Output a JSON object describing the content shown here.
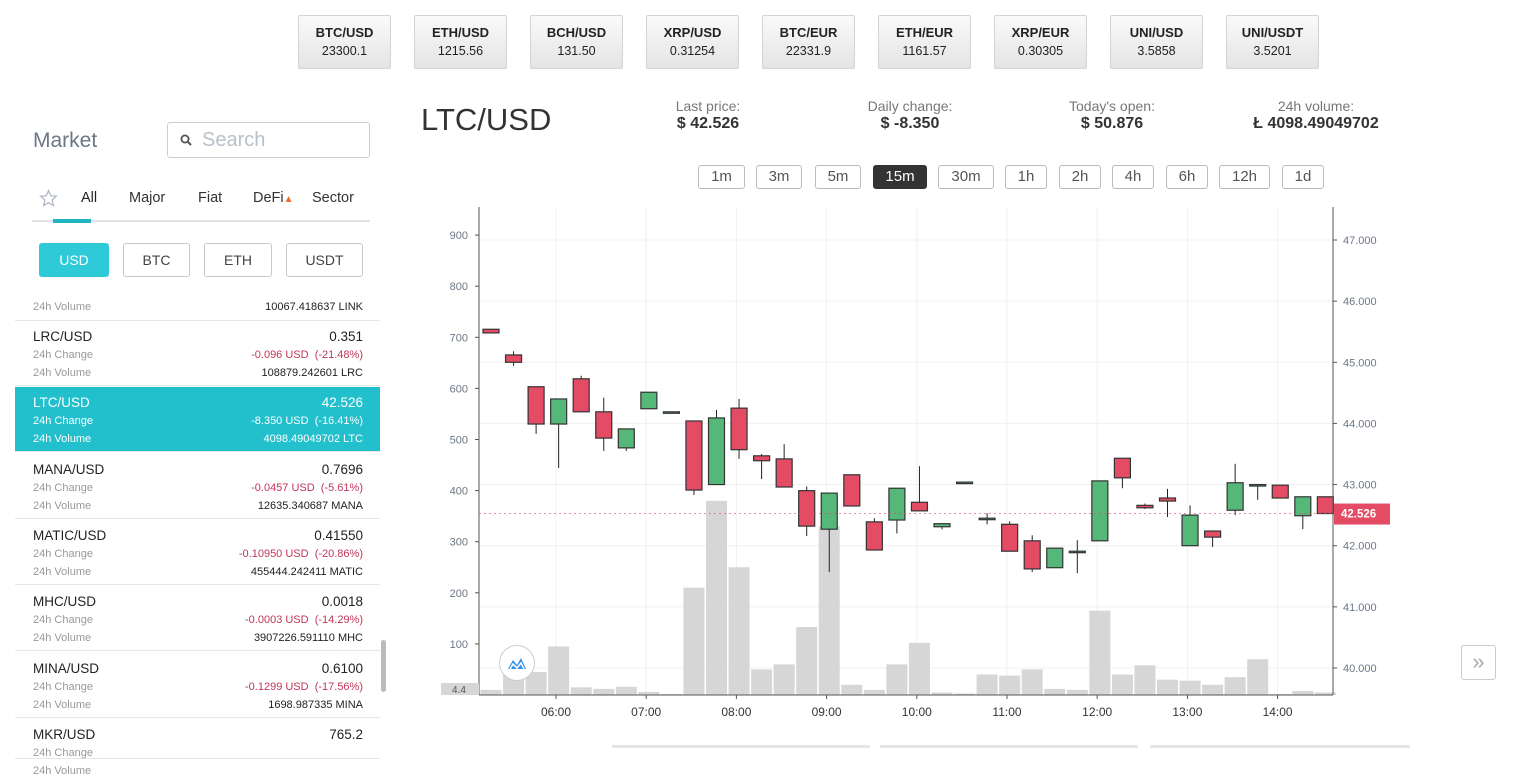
{
  "tickers": [
    {
      "pair": "BTC/USD",
      "price": "23300.1"
    },
    {
      "pair": "ETH/USD",
      "price": "1215.56"
    },
    {
      "pair": "BCH/USD",
      "price": "131.50"
    },
    {
      "pair": "XRP/USD",
      "price": "0.31254"
    },
    {
      "pair": "BTC/EUR",
      "price": "22331.9"
    },
    {
      "pair": "ETH/EUR",
      "price": "1161.57"
    },
    {
      "pair": "XRP/EUR",
      "price": "0.30305"
    },
    {
      "pair": "UNI/USD",
      "price": "3.5858"
    },
    {
      "pair": "UNI/USDT",
      "price": "3.5201"
    }
  ],
  "sidebar": {
    "title": "Market",
    "search_placeholder": "Search",
    "tabs": [
      "All",
      "Major",
      "Fiat",
      "DeFi",
      "Sector"
    ],
    "active_tab": "All",
    "currencies": [
      "USD",
      "BTC",
      "ETH",
      "USDT"
    ],
    "active_currency": "USD",
    "labels": {
      "change": "24h Change",
      "volume": "24h Volume"
    },
    "partial_top_volume": "10067.418637 LINK",
    "rows": [
      {
        "pair": "LRC/USD",
        "price": "0.351",
        "change": "-0.096 USD  (-21.48%)",
        "volume": "108879.242601 LRC"
      },
      {
        "pair": "LTC/USD",
        "price": "42.526",
        "change": "-8.350 USD  (-16.41%)",
        "volume": "4098.49049702 LTC",
        "selected": true
      },
      {
        "pair": "MANA/USD",
        "price": "0.7696",
        "change": "-0.0457 USD  (-5.61%)",
        "volume": "12635.340687 MANA"
      },
      {
        "pair": "MATIC/USD",
        "price": "0.41550",
        "change": "-0.10950 USD  (-20.86%)",
        "volume": "455444.242411 MATIC"
      },
      {
        "pair": "MHC/USD",
        "price": "0.0018",
        "change": "-0.0003 USD  (-14.29%)",
        "volume": "3907226.591110 MHC"
      },
      {
        "pair": "MINA/USD",
        "price": "0.6100",
        "change": "-0.1299 USD  (-17.56%)",
        "volume": "1698.987335 MINA"
      },
      {
        "pair": "MKR/USD",
        "price": "765.2",
        "change": "",
        "volume": ""
      }
    ]
  },
  "main": {
    "pair": "LTC/USD",
    "stats": [
      {
        "label": "Last price:",
        "value": "$ 42.526"
      },
      {
        "label": "Daily change:",
        "value": "$ -8.350"
      },
      {
        "label": "Today's open:",
        "value": "$ 50.876"
      },
      {
        "label": "24h volume:",
        "value": "Ł 4098.49049702"
      }
    ],
    "timeframes": [
      "1m",
      "3m",
      "5m",
      "15m",
      "30m",
      "1h",
      "2h",
      "4h",
      "6h",
      "12h",
      "1d"
    ],
    "active_timeframe": "15m"
  },
  "colors": {
    "accent": "#22bfcc",
    "up": "#55b878",
    "down": "#e44c65",
    "volume": "#d6d6d6"
  },
  "chart_data": {
    "type": "candlestick",
    "interval": "15m",
    "x_ticks": [
      "06:00",
      "07:00",
      "08:00",
      "09:00",
      "10:00",
      "11:00",
      "12:00",
      "13:00",
      "14:00"
    ],
    "price_ticks": [
      "40.000",
      "41.000",
      "42.000",
      "43.000",
      "44.000",
      "45.000",
      "46.000",
      "47.000"
    ],
    "volume_ticks": [
      "100",
      "200",
      "300",
      "400",
      "500",
      "600",
      "700",
      "800",
      "900"
    ],
    "volume_min_label": "4.4",
    "last_price_label": "42.526",
    "price_range": [
      39.55,
      47.3
    ],
    "volume_range": [
      0,
      950
    ],
    "times": [
      "05:15",
      "05:30",
      "05:45",
      "06:00",
      "06:15",
      "06:30",
      "06:45",
      "07:00",
      "07:15",
      "07:30",
      "07:45",
      "08:00",
      "08:15",
      "08:30",
      "08:45",
      "09:00",
      "09:15",
      "09:30",
      "09:45",
      "10:00",
      "10:15",
      "10:30",
      "10:45",
      "11:00",
      "11:15",
      "11:30",
      "11:45",
      "12:00",
      "12:15",
      "12:30",
      "12:45",
      "13:00",
      "13:15",
      "13:30",
      "13:45",
      "14:00",
      "14:15",
      "14:30"
    ],
    "ohlc": [
      [
        45.54,
        45.54,
        45.48,
        45.48
      ],
      [
        45.12,
        45.18,
        44.94,
        45.0
      ],
      [
        44.6,
        44.6,
        43.83,
        43.99
      ],
      [
        43.99,
        44.4,
        43.27,
        44.4
      ],
      [
        44.73,
        44.78,
        44.19,
        44.19
      ],
      [
        44.19,
        44.42,
        43.55,
        43.76
      ],
      [
        43.6,
        43.91,
        43.55,
        43.91
      ],
      [
        44.24,
        44.51,
        44.24,
        44.51
      ],
      [
        44.19,
        44.19,
        44.19,
        44.19
      ],
      [
        44.04,
        44.04,
        42.83,
        42.91
      ],
      [
        43.0,
        44.22,
        43.0,
        44.09
      ],
      [
        44.25,
        44.4,
        43.42,
        43.57
      ],
      [
        43.47,
        43.5,
        43.09,
        43.39
      ],
      [
        43.42,
        43.66,
        42.96,
        42.96
      ],
      [
        42.9,
        42.97,
        42.16,
        42.32
      ],
      [
        42.27,
        42.86,
        41.57,
        42.86
      ],
      [
        43.16,
        43.16,
        42.65,
        42.65
      ],
      [
        42.39,
        42.45,
        41.93,
        41.93
      ],
      [
        42.42,
        42.94,
        42.2,
        42.94
      ],
      [
        42.71,
        43.3,
        42.57,
        42.57
      ],
      [
        42.31,
        42.36,
        42.27,
        42.36
      ],
      [
        43.04,
        43.04,
        43.04,
        43.04
      ],
      [
        42.45,
        42.53,
        42.35,
        42.45
      ],
      [
        42.35,
        42.4,
        41.91,
        41.91
      ],
      [
        42.08,
        42.17,
        41.57,
        41.62
      ],
      [
        41.64,
        41.96,
        41.64,
        41.96
      ],
      [
        41.91,
        42.09,
        41.55,
        41.91
      ],
      [
        42.08,
        43.06,
        42.08,
        43.06
      ],
      [
        43.43,
        43.43,
        42.94,
        43.11
      ],
      [
        42.66,
        42.69,
        42.6,
        42.62
      ],
      [
        42.78,
        42.93,
        42.47,
        42.73
      ],
      [
        42.0,
        42.66,
        42.0,
        42.5
      ],
      [
        42.24,
        42.24,
        41.98,
        42.14
      ],
      [
        42.58,
        43.34,
        42.5,
        43.03
      ],
      [
        43.0,
        43.01,
        42.75,
        43.0
      ],
      [
        42.99,
        42.99,
        42.78,
        42.78
      ],
      [
        42.49,
        42.8,
        42.27,
        42.8
      ],
      [
        42.8,
        42.8,
        42.53,
        42.526
      ]
    ],
    "volume": [
      10,
      40,
      45,
      95,
      15,
      12,
      16,
      6,
      2,
      210,
      380,
      250,
      50,
      60,
      133,
      330,
      20,
      10,
      60,
      102,
      5,
      3,
      40,
      38,
      50,
      12,
      10,
      165,
      40,
      58,
      30,
      28,
      20,
      35,
      70,
      2,
      8,
      5
    ],
    "grid": true
  }
}
